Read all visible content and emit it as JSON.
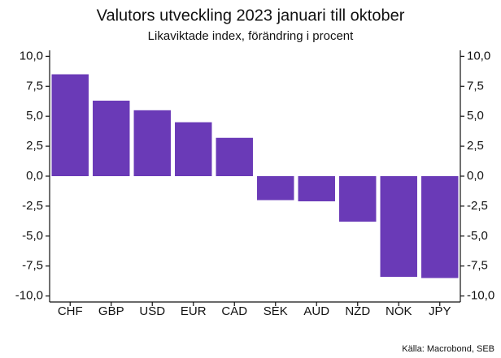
{
  "chart_data": {
    "type": "bar",
    "title": "Valutors utveckling 2023 januari till oktober",
    "subtitle": "Likaviktade index, förändring i procent",
    "source": "Källa: Macrobond, SEB",
    "categories": [
      "CHF",
      "GBP",
      "USD",
      "EUR",
      "CAD",
      "SEK",
      "AUD",
      "NZD",
      "NOK",
      "JPY"
    ],
    "values": [
      8.5,
      6.3,
      5.5,
      4.5,
      3.2,
      -2.0,
      -2.1,
      -3.8,
      -8.4,
      -8.5
    ],
    "color": "#6a3ab7",
    "ylim": [
      -10.5,
      10.5
    ],
    "yticks": [
      {
        "value": 10,
        "label": "10,0"
      },
      {
        "value": 7.5,
        "label": "7,5"
      },
      {
        "value": 5,
        "label": "5,0"
      },
      {
        "value": 2.5,
        "label": "2,5"
      },
      {
        "value": 0,
        "label": "0,0"
      },
      {
        "value": -2.5,
        "label": "-2,5"
      },
      {
        "value": -5,
        "label": "-5,0"
      },
      {
        "value": -7.5,
        "label": "-7,5"
      },
      {
        "value": -10,
        "label": "-10,0"
      }
    ],
    "y2lim": [
      -10.5,
      10.5
    ],
    "y2ticks": [
      {
        "value": 10,
        "label": "10,0"
      },
      {
        "value": 7.5,
        "label": "7,5"
      },
      {
        "value": 5,
        "label": "5,0"
      },
      {
        "value": 2.5,
        "label": "2,5"
      },
      {
        "value": 0,
        "label": "0,0"
      },
      {
        "value": -2.5,
        "label": "-2,5"
      },
      {
        "value": -5,
        "label": "-5,0"
      },
      {
        "value": -7.5,
        "label": "-7,5"
      },
      {
        "value": -10,
        "label": "-10,0"
      }
    ],
    "grid": false
  }
}
